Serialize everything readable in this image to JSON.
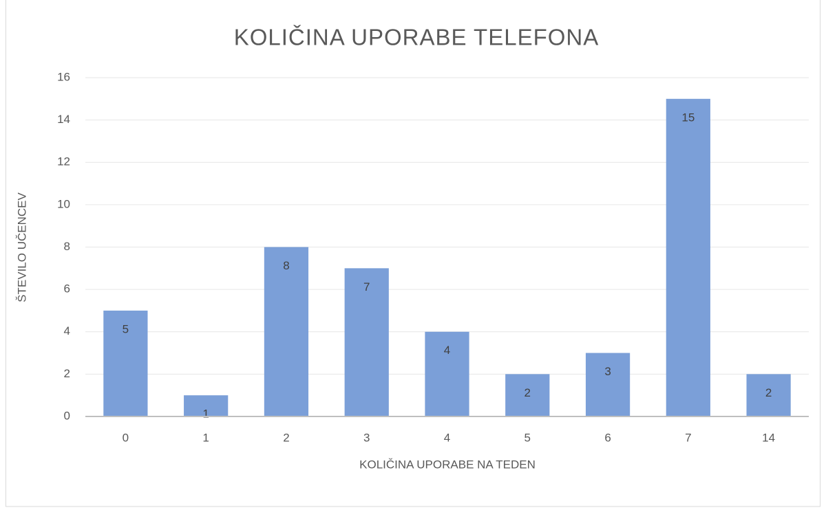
{
  "chart_data": {
    "type": "bar",
    "title": "KOLIČINA UPORABE TELEFONA",
    "x_label": "KOLIČINA UPORABE NA TEDEN",
    "y_label": "ŠTEVILO UČENCEV",
    "categories": [
      "0",
      "1",
      "2",
      "3",
      "4",
      "5",
      "6",
      "7",
      "14"
    ],
    "values": [
      5,
      1,
      8,
      7,
      4,
      2,
      3,
      15,
      2
    ],
    "color": "#7b9fd8",
    "ylim": [
      0,
      16
    ],
    "yticks": [
      0,
      2,
      4,
      6,
      8,
      10,
      12,
      14,
      16
    ],
    "grid": true
  }
}
